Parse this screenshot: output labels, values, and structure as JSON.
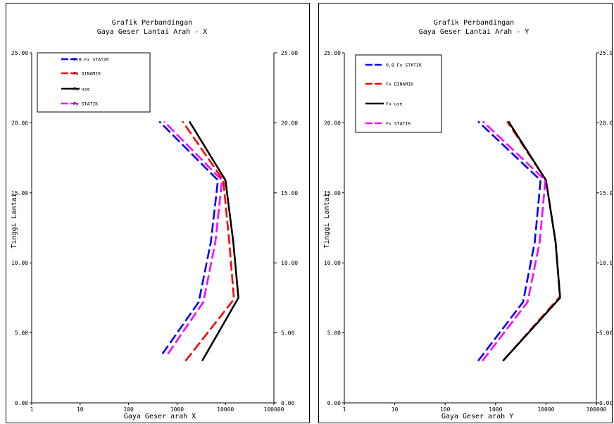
{
  "chart_data": [
    {
      "type": "line",
      "title": "Grafik Perbandingan",
      "subtitle": "Gaya Geser Lantai Arah - X",
      "xlabel": "Gaya Geser arah X",
      "ylabel": "Tinggi Lantai",
      "x_scale": "log",
      "xlim": [
        1,
        100000
      ],
      "ylim": [
        0,
        25
      ],
      "x_ticks": [
        "1",
        "10",
        "100",
        "1000",
        "10000",
        "100000"
      ],
      "y_ticks": [
        "0.00",
        "5.00",
        "10.00",
        "15.00",
        "20.00",
        "25.00"
      ],
      "y_ticks_right": [
        "0.00",
        "5.00",
        "10.00",
        "15.00",
        "20.00",
        "25.00"
      ],
      "legend_position": "top-left",
      "series": [
        {
          "name": "0,8 Fx STATIK",
          "color": "#0000ff",
          "dash": "long-dash",
          "points": [
            {
              "x": 500,
              "y": 3.5
            },
            {
              "x": 2800,
              "y": 7.2
            },
            {
              "x": 5000,
              "y": 11.5
            },
            {
              "x": 7000,
              "y": 15.9
            },
            {
              "x": 430,
              "y": 20.1
            }
          ]
        },
        {
          "name": "Fx DINAMIK",
          "color": "#ff0000",
          "dash": "long-dash",
          "points": [
            {
              "x": 1500,
              "y": 3.0
            },
            {
              "x": 15000,
              "y": 7.4
            },
            {
              "x": 12000,
              "y": 11.5
            },
            {
              "x": 9000,
              "y": 15.9
            },
            {
              "x": 1300,
              "y": 20.1
            }
          ]
        },
        {
          "name": "Fx use",
          "color": "#000000",
          "dash": "solid",
          "points": [
            {
              "x": 3300,
              "y": 3.0
            },
            {
              "x": 18500,
              "y": 7.5
            },
            {
              "x": 14500,
              "y": 11.5
            },
            {
              "x": 10000,
              "y": 15.9
            },
            {
              "x": 1800,
              "y": 20.1
            }
          ]
        },
        {
          "name": "Fx STATIK",
          "color": "#ff00ff",
          "dash": "long-dash",
          "points": [
            {
              "x": 650,
              "y": 3.5
            },
            {
              "x": 3500,
              "y": 7.2
            },
            {
              "x": 6200,
              "y": 11.5
            },
            {
              "x": 8500,
              "y": 15.9
            },
            {
              "x": 540,
              "y": 20.1
            }
          ]
        }
      ]
    },
    {
      "type": "line",
      "title": "Grafik Perbandingan",
      "subtitle": "Gaya Geser Lantai Arah - Y",
      "xlabel": "Gaya Geser arah Y",
      "ylabel": "Tinggi Lantai",
      "x_scale": "log",
      "xlim": [
        1,
        100000
      ],
      "ylim": [
        0,
        25
      ],
      "x_ticks": [
        "1",
        "10",
        "100",
        "1000",
        "10000",
        "100000"
      ],
      "y_ticks": [
        "0.00",
        "5.00",
        "10.00",
        "15.00",
        "20.00",
        "25.00"
      ],
      "y_ticks_right": [
        "0.00",
        "5.00",
        "10.00",
        "15.00",
        "20.00",
        "25.00"
      ],
      "legend_position": "top-left",
      "series": [
        {
          "name": "0,8 Fx STATIK",
          "color": "#0000ff",
          "dash": "long-dash",
          "points": [
            {
              "x": 450,
              "y": 3.0
            },
            {
              "x": 3500,
              "y": 7.2
            },
            {
              "x": 6000,
              "y": 11.5
            },
            {
              "x": 7800,
              "y": 15.9
            },
            {
              "x": 450,
              "y": 20.1
            }
          ]
        },
        {
          "name": "Fx DINAMIK",
          "color": "#ff0000",
          "dash": "long-dash",
          "points": [
            {
              "x": 1400,
              "y": 3.0
            },
            {
              "x": 19000,
              "y": 7.6
            },
            {
              "x": 15500,
              "y": 11.5
            },
            {
              "x": 10000,
              "y": 15.9
            },
            {
              "x": 1700,
              "y": 20.1
            }
          ]
        },
        {
          "name": "Fx use",
          "color": "#000000",
          "dash": "solid",
          "points": [
            {
              "x": 1400,
              "y": 3.0
            },
            {
              "x": 19000,
              "y": 7.5
            },
            {
              "x": 15500,
              "y": 11.5
            },
            {
              "x": 10000,
              "y": 15.9
            },
            {
              "x": 1800,
              "y": 20.1
            }
          ]
        },
        {
          "name": "Fx STATIK",
          "color": "#ff00ff",
          "dash": "long-dash",
          "points": [
            {
              "x": 550,
              "y": 3.0
            },
            {
              "x": 4300,
              "y": 7.2
            },
            {
              "x": 7500,
              "y": 11.5
            },
            {
              "x": 9700,
              "y": 15.9
            },
            {
              "x": 560,
              "y": 20.1
            }
          ]
        }
      ]
    }
  ]
}
